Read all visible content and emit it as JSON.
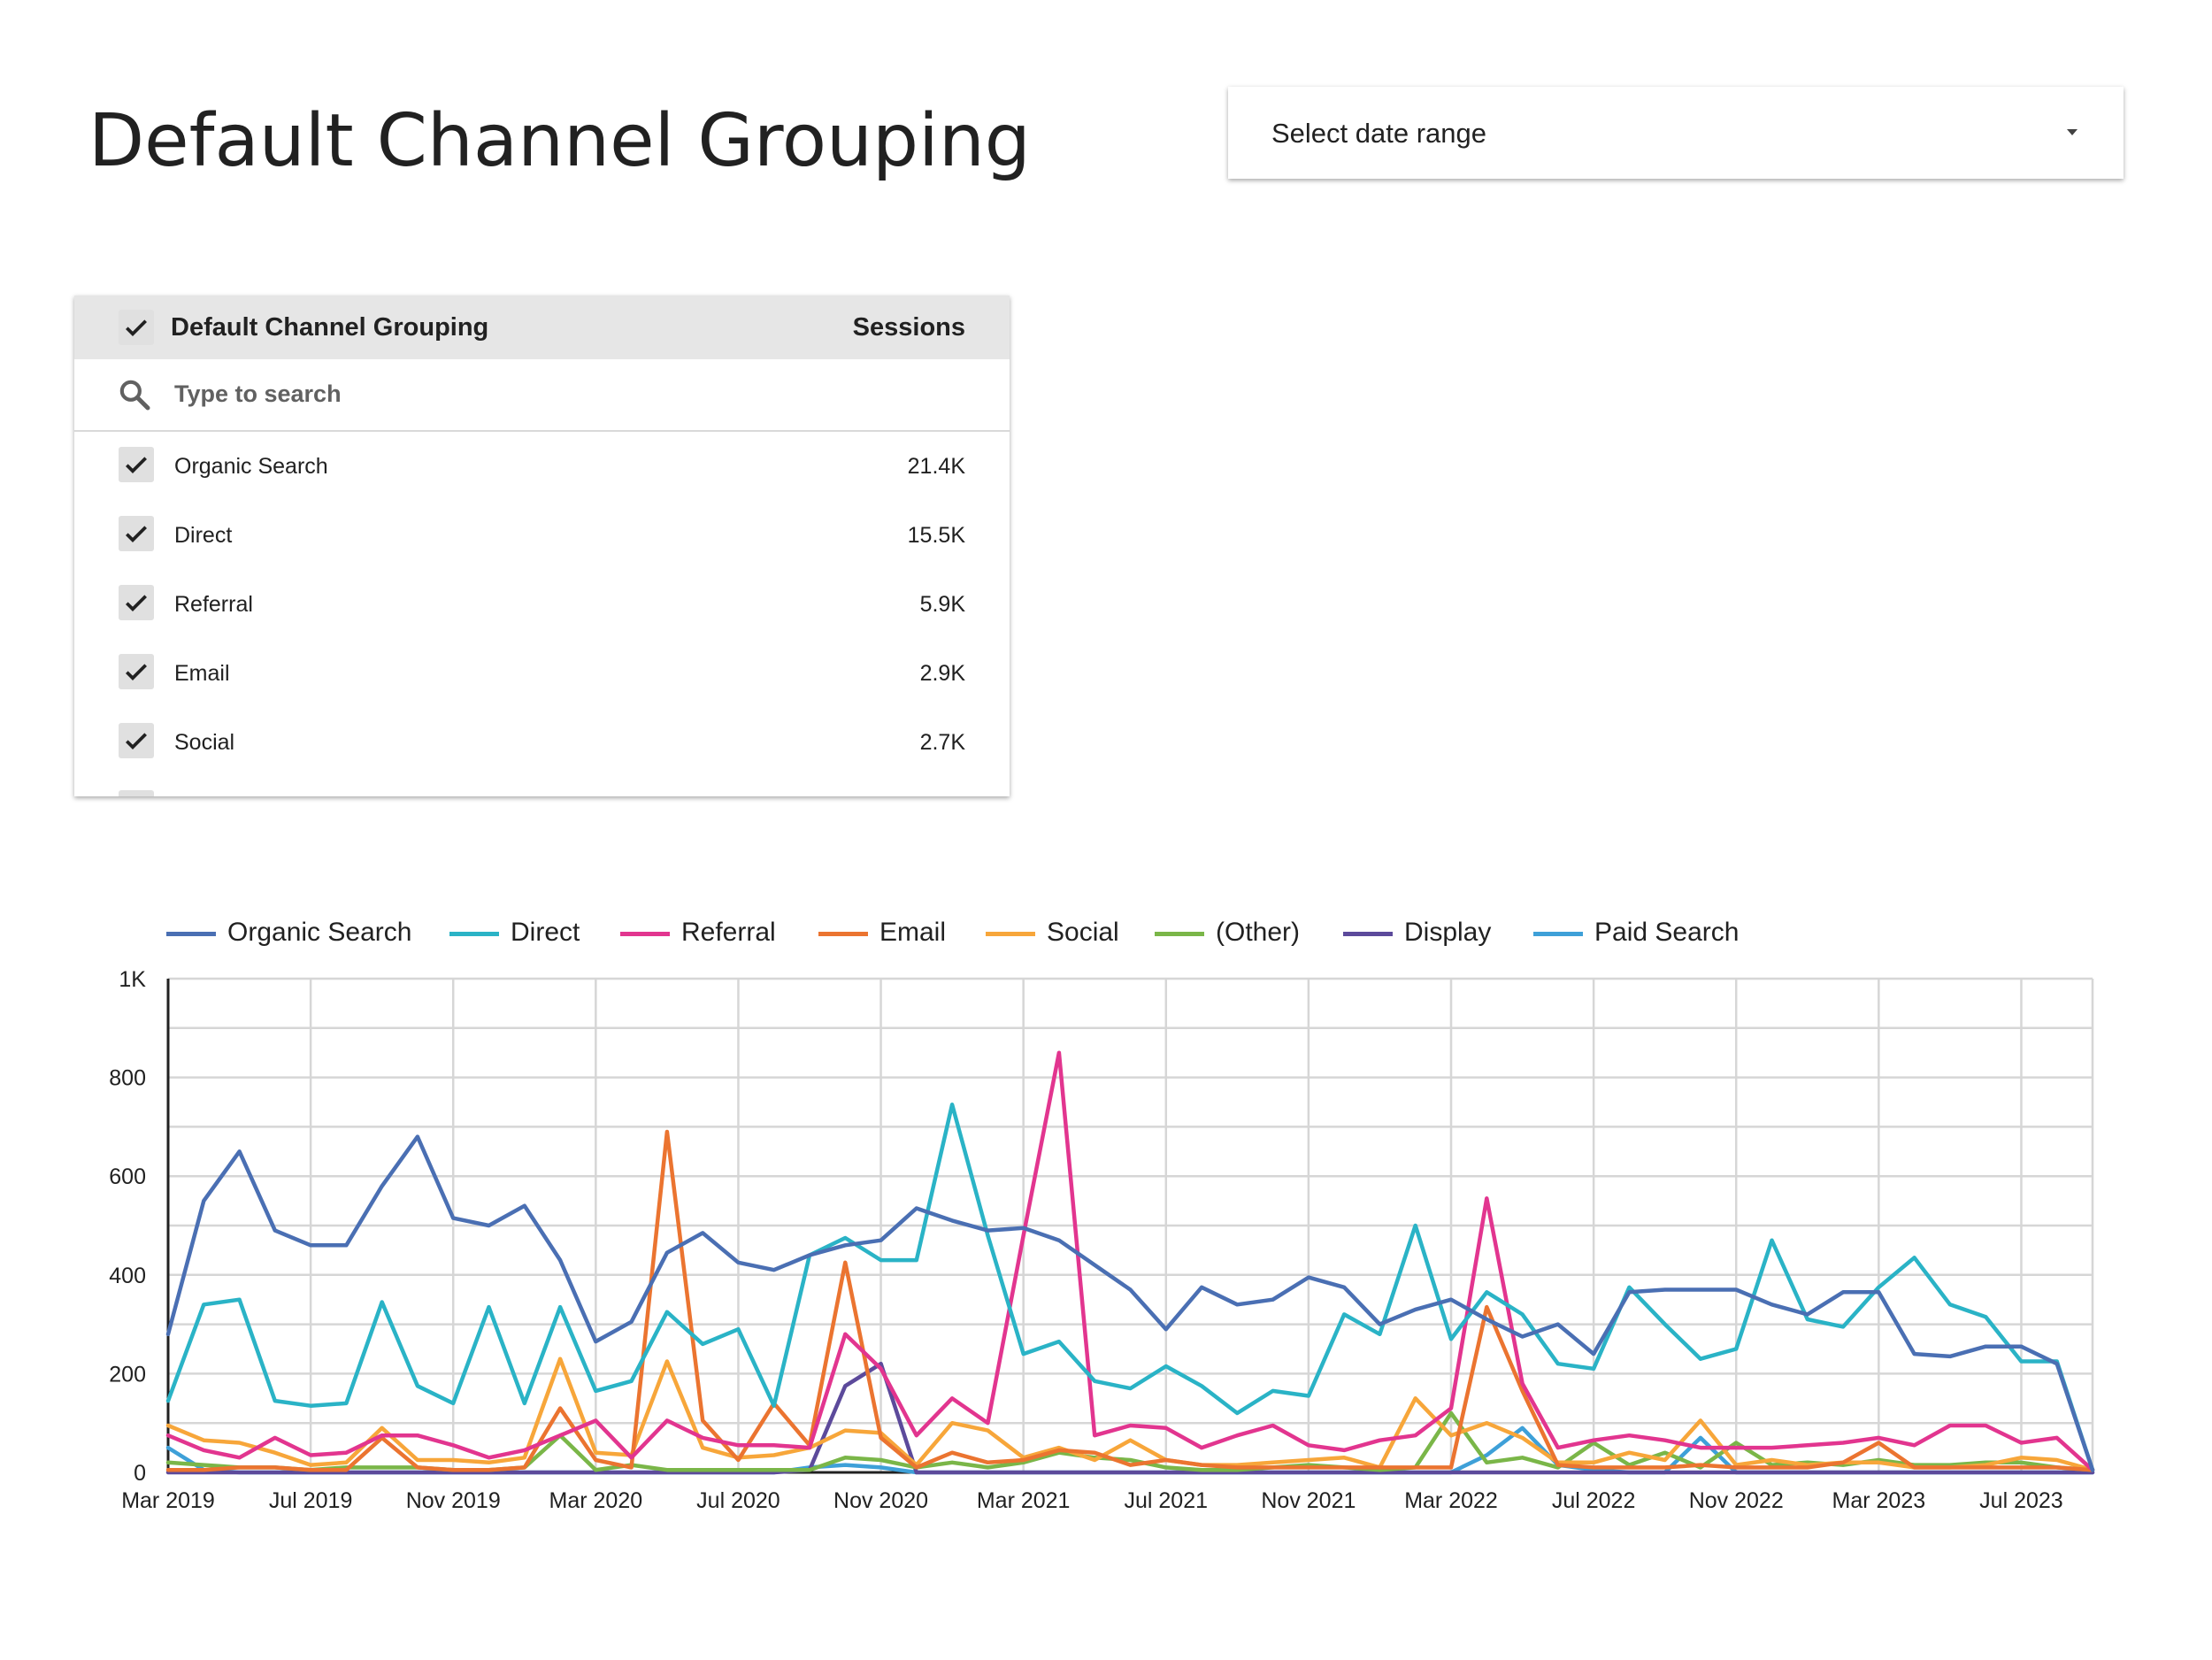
{
  "page": {
    "title": "Default Channel Grouping"
  },
  "date_range": {
    "label": "Select date range"
  },
  "filter": {
    "header_title": "Default Channel Grouping",
    "header_metric": "Sessions",
    "search_placeholder": "Type to search",
    "items": [
      {
        "label": "Organic Search",
        "value": "21.4K"
      },
      {
        "label": "Direct",
        "value": "15.5K"
      },
      {
        "label": "Referral",
        "value": "5.9K"
      },
      {
        "label": "Email",
        "value": "2.9K"
      },
      {
        "label": "Social",
        "value": "2.7K"
      }
    ]
  },
  "chart_data": {
    "type": "line",
    "ylim": [
      0,
      1000
    ],
    "y_ticks": [
      {
        "value": 0,
        "label": "0"
      },
      {
        "value": 200,
        "label": "200"
      },
      {
        "value": 400,
        "label": "400"
      },
      {
        "value": 600,
        "label": "600"
      },
      {
        "value": 800,
        "label": "800"
      },
      {
        "value": 1000,
        "label": "1K"
      }
    ],
    "x_ticks": [
      {
        "index": 0,
        "label": "Mar 2019"
      },
      {
        "index": 4,
        "label": "Jul 2019"
      },
      {
        "index": 8,
        "label": "Nov 2019"
      },
      {
        "index": 12,
        "label": "Mar 2020"
      },
      {
        "index": 16,
        "label": "Jul 2020"
      },
      {
        "index": 20,
        "label": "Nov 2020"
      },
      {
        "index": 24,
        "label": "Mar 2021"
      },
      {
        "index": 28,
        "label": "Jul 2021"
      },
      {
        "index": 32,
        "label": "Nov 2021"
      },
      {
        "index": 36,
        "label": "Mar 2022"
      },
      {
        "index": 40,
        "label": "Jul 2022"
      },
      {
        "index": 44,
        "label": "Nov 2022"
      },
      {
        "index": 48,
        "label": "Mar 2023"
      },
      {
        "index": 52,
        "label": "Jul 2023"
      }
    ],
    "x_count": 55,
    "grid": true,
    "legend_position": "top",
    "series": [
      {
        "name": "Organic Search",
        "color": "#4a6fb3",
        "values": [
          280,
          550,
          650,
          490,
          460,
          460,
          580,
          680,
          515,
          500,
          540,
          430,
          265,
          305,
          445,
          485,
          425,
          410,
          440,
          460,
          470,
          535,
          510,
          490,
          495,
          470,
          420,
          370,
          290,
          375,
          340,
          350,
          395,
          375,
          300,
          330,
          350,
          310,
          275,
          300,
          240,
          365,
          370,
          370,
          370,
          340,
          320,
          365,
          365,
          240,
          235,
          255,
          255,
          220,
          5
        ]
      },
      {
        "name": "Direct",
        "color": "#2ab3c6",
        "values": [
          145,
          340,
          350,
          145,
          135,
          140,
          345,
          175,
          140,
          335,
          140,
          335,
          165,
          185,
          325,
          260,
          290,
          135,
          440,
          475,
          430,
          430,
          745,
          480,
          240,
          265,
          185,
          170,
          215,
          175,
          120,
          165,
          155,
          320,
          280,
          500,
          270,
          365,
          320,
          220,
          210,
          375,
          300,
          230,
          250,
          470,
          310,
          295,
          375,
          435,
          340,
          315,
          225,
          225,
          5
        ]
      },
      {
        "name": "Referral",
        "color": "#e2358f",
        "values": [
          75,
          45,
          30,
          70,
          35,
          40,
          75,
          75,
          55,
          30,
          45,
          75,
          105,
          30,
          105,
          70,
          55,
          55,
          50,
          280,
          210,
          75,
          150,
          100,
          480,
          850,
          75,
          95,
          90,
          50,
          75,
          95,
          55,
          45,
          65,
          75,
          130,
          555,
          180,
          50,
          65,
          75,
          65,
          50,
          50,
          50,
          55,
          60,
          70,
          55,
          95,
          95,
          60,
          70,
          5
        ]
      },
      {
        "name": "Email",
        "color": "#eb7430",
        "values": [
          5,
          5,
          10,
          10,
          5,
          5,
          70,
          10,
          5,
          5,
          10,
          130,
          25,
          10,
          690,
          105,
          25,
          140,
          55,
          425,
          70,
          10,
          40,
          20,
          25,
          45,
          40,
          15,
          25,
          15,
          10,
          10,
          10,
          10,
          10,
          10,
          10,
          335,
          165,
          15,
          10,
          10,
          10,
          15,
          10,
          10,
          10,
          20,
          60,
          10,
          10,
          10,
          10,
          10,
          5
        ]
      },
      {
        "name": "Social",
        "color": "#f7a63a",
        "values": [
          95,
          65,
          60,
          40,
          15,
          20,
          90,
          25,
          25,
          20,
          30,
          230,
          40,
          35,
          225,
          50,
          30,
          35,
          50,
          85,
          80,
          15,
          100,
          85,
          30,
          50,
          25,
          65,
          25,
          15,
          15,
          20,
          25,
          30,
          10,
          150,
          75,
          100,
          70,
          20,
          20,
          40,
          25,
          105,
          15,
          25,
          15,
          20,
          20,
          10,
          10,
          15,
          30,
          25,
          5
        ]
      },
      {
        "name": "(Other)",
        "color": "#7ab648",
        "values": [
          20,
          15,
          10,
          10,
          5,
          10,
          10,
          10,
          5,
          5,
          10,
          75,
          5,
          15,
          5,
          5,
          5,
          5,
          5,
          30,
          25,
          10,
          20,
          10,
          20,
          40,
          30,
          25,
          10,
          5,
          5,
          10,
          15,
          10,
          5,
          10,
          120,
          20,
          30,
          10,
          60,
          15,
          40,
          10,
          60,
          15,
          20,
          15,
          25,
          15,
          15,
          20,
          20,
          10,
          5
        ]
      },
      {
        "name": "Display",
        "color": "#5c4a9b",
        "values": [
          0,
          0,
          0,
          0,
          0,
          0,
          0,
          0,
          0,
          0,
          0,
          0,
          0,
          0,
          0,
          0,
          0,
          0,
          5,
          175,
          220,
          0,
          0,
          0,
          0,
          0,
          0,
          0,
          0,
          0,
          0,
          0,
          0,
          0,
          0,
          0,
          0,
          0,
          0,
          0,
          0,
          0,
          0,
          0,
          0,
          0,
          0,
          0,
          0,
          0,
          0,
          0,
          0,
          0,
          0
        ]
      },
      {
        "name": "Paid Search",
        "color": "#3ea0d8",
        "values": [
          50,
          5,
          0,
          0,
          0,
          0,
          0,
          0,
          0,
          0,
          0,
          0,
          0,
          0,
          0,
          0,
          0,
          0,
          10,
          15,
          10,
          0,
          0,
          0,
          0,
          0,
          0,
          0,
          0,
          0,
          0,
          0,
          0,
          0,
          0,
          0,
          0,
          35,
          90,
          15,
          5,
          0,
          0,
          70,
          0,
          0,
          0,
          0,
          0,
          0,
          0,
          0,
          0,
          0,
          0
        ]
      }
    ]
  }
}
